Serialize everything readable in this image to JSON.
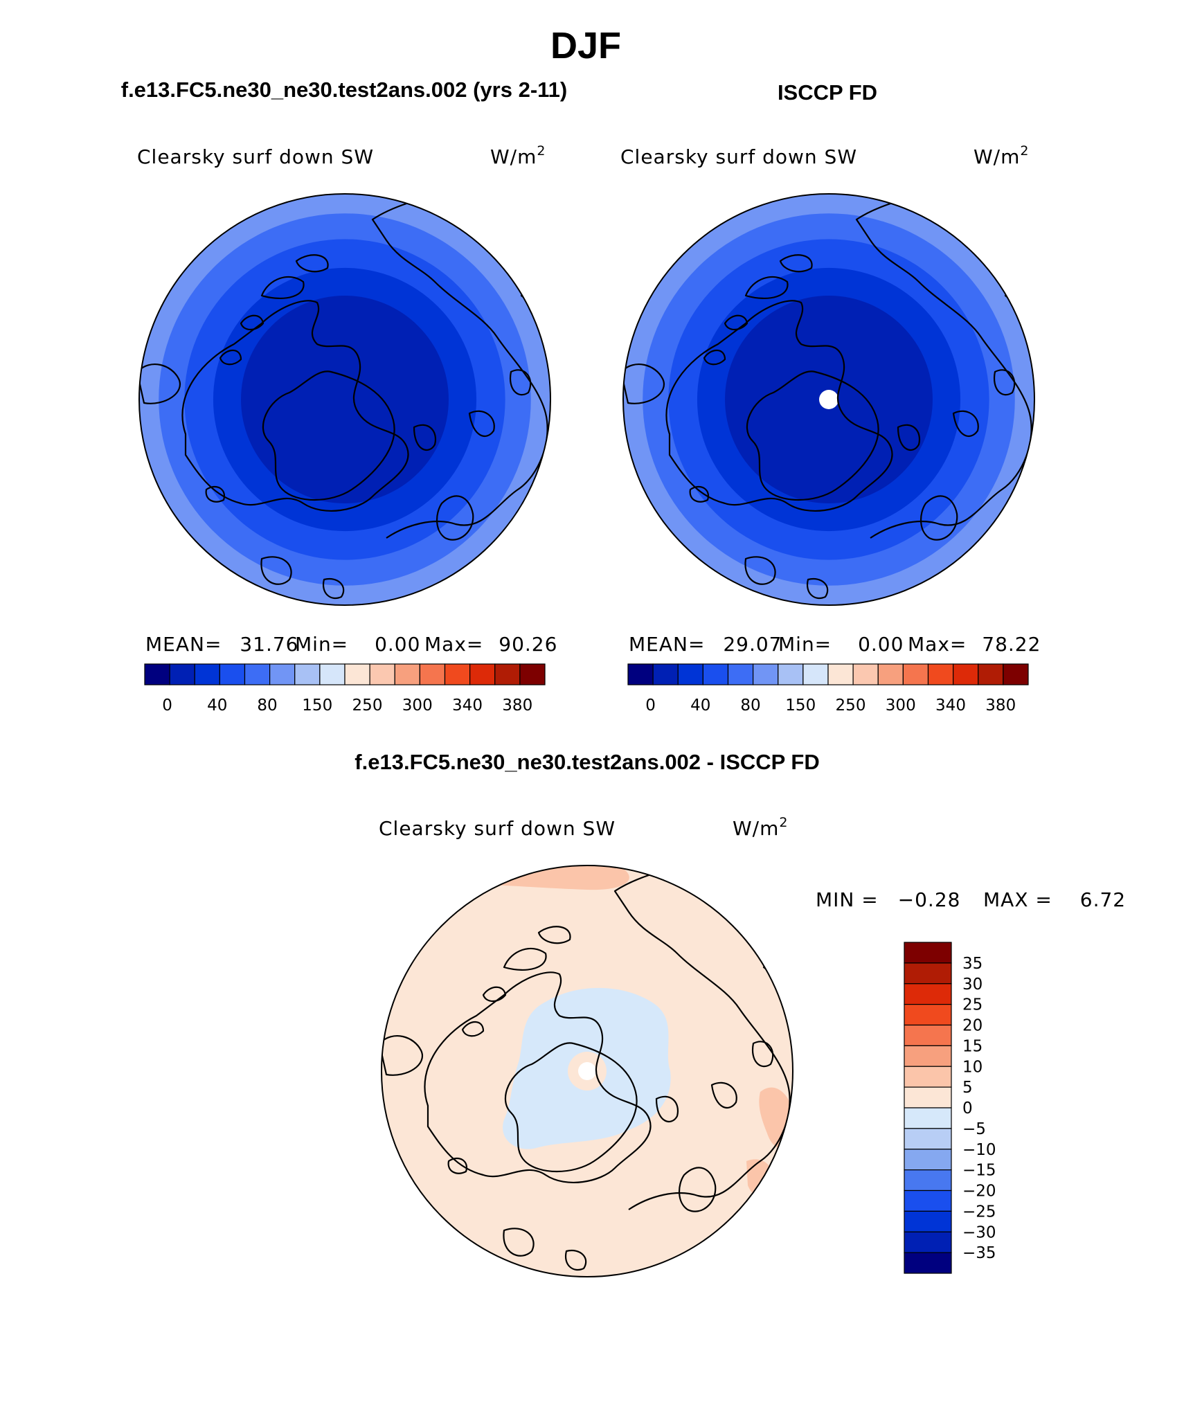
{
  "page": {
    "season": "DJF",
    "model_title": "f.e13.FC5.ne30_ne30.test2ans.002 (yrs 2-11)",
    "obs_title": "ISCCP FD",
    "diff_title": "f.e13.FC5.ne30_ne30.test2ans.002 - ISCCP FD"
  },
  "colors": {
    "abs_palette": [
      "#00007f",
      "#0020b4",
      "#0034d6",
      "#1a4fee",
      "#3d6df5",
      "#7195f5",
      "#a8c1f5",
      "#d6e6fa",
      "#fce6d6",
      "#fbc8b0",
      "#f7a07e",
      "#f5754e",
      "#f04a1e",
      "#dd2a08",
      "#b01c05",
      "#7d0000"
    ],
    "diff_palette": [
      "#00007f",
      "#0020b4",
      "#0034d6",
      "#1a4fee",
      "#4878f0",
      "#85a8f0",
      "#b8cef5",
      "#d6e8fa",
      "#fce6d6",
      "#fbc5aa",
      "#f7a07e",
      "#f5754e",
      "#f04a1e",
      "#dd2a08",
      "#b01c05",
      "#7d0000"
    ]
  },
  "chart_data": [
    {
      "type": "heatmap",
      "projection": "north polar stereographic",
      "title": "f.e13.FC5.ne30_ne30.test2ans.002 (yrs 2-11)",
      "variable": "Clearsky surf down SW",
      "units": "W/m",
      "units_sup": "2",
      "stats": {
        "mean_label": "MEAN=",
        "mean": "31.76",
        "min_label": "Min=",
        "min": "0.00",
        "max_label": "Max=",
        "max": "90.26"
      },
      "colorbar_ticks": [
        "0",
        "40",
        "80",
        "150",
        "250",
        "300",
        "340",
        "380"
      ],
      "zone_levels": [
        10,
        20,
        30,
        40,
        50,
        60,
        70
      ]
    },
    {
      "type": "heatmap",
      "projection": "north polar stereographic",
      "title": "ISCCP FD",
      "variable": "Clearsky surf down SW",
      "units": "W/m",
      "units_sup": "2",
      "stats": {
        "mean_label": "MEAN=",
        "mean": "29.07",
        "min_label": "Min=",
        "min": "0.00",
        "max_label": "Max=",
        "max": "78.22"
      },
      "colorbar_ticks": [
        "0",
        "40",
        "80",
        "150",
        "250",
        "300",
        "340",
        "380"
      ],
      "zone_levels": [
        10,
        20,
        30,
        40,
        50,
        60,
        70
      ],
      "missing_pole": true
    },
    {
      "type": "heatmap",
      "projection": "north polar stereographic",
      "title": "f.e13.FC5.ne30_ne30.test2ans.002 - ISCCP FD",
      "variable": "Clearsky surf down SW",
      "units": "W/m",
      "units_sup": "2",
      "stats": {
        "min_label": "MIN =",
        "min": "−0.28",
        "max_label": "MAX =",
        "max": "6.72"
      },
      "colorbar_ticks": [
        "35",
        "30",
        "25",
        "20",
        "15",
        "10",
        "5",
        "0",
        "−5",
        "−10",
        "−15",
        "−20",
        "−25",
        "−30",
        "−35"
      ],
      "colorbar_range": [
        -35,
        35
      ],
      "dominant_range": [
        0,
        5
      ],
      "negative_region": [
        -5,
        0
      ],
      "max_region": [
        5,
        10
      ]
    }
  ]
}
